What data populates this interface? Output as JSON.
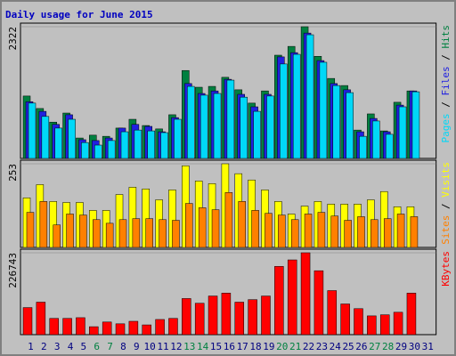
{
  "chart_data": [
    {
      "type": "bar",
      "title": "Daily usage for June 2015",
      "title_color": "#0000c0",
      "ylim": [
        0,
        2322
      ],
      "yticks": [
        2322
      ],
      "legend_separator": " / ",
      "series": [
        {
          "name": "Hits",
          "color": "#008040",
          "values": [
            1100,
            880,
            640,
            800,
            360,
            410,
            390,
            535,
            690,
            580,
            520,
            770,
            1550,
            1255,
            1270,
            1430,
            1210,
            975,
            1190,
            1820,
            1975,
            2322,
            1800,
            1410,
            1285,
            500,
            785,
            485,
            990,
            1190,
            null
          ]
        },
        {
          "name": "Files",
          "color": "#2020e0",
          "values": [
            1000,
            830,
            600,
            770,
            330,
            315,
            360,
            535,
            600,
            565,
            470,
            720,
            1320,
            1145,
            1190,
            1395,
            1130,
            910,
            1130,
            1790,
            1865,
            2210,
            1725,
            1320,
            1210,
            470,
            705,
            470,
            940,
            1190,
            null
          ]
        },
        {
          "name": "Pages",
          "color": "#00d8f8",
          "values": [
            975,
            740,
            535,
            690,
            280,
            235,
            315,
            470,
            500,
            485,
            455,
            690,
            1270,
            1115,
            1145,
            1380,
            1080,
            830,
            1100,
            1665,
            1835,
            2180,
            1695,
            1285,
            1160,
            390,
            660,
            425,
            910,
            1175,
            null
          ]
        }
      ]
    },
    {
      "type": "bar",
      "ylim": [
        0,
        253
      ],
      "yticks": [
        253
      ],
      "legend_separator": " / ",
      "series": [
        {
          "name": "Visits",
          "color": "#ffff00",
          "values": [
            150,
            190,
            139,
            136,
            136,
            112,
            112,
            160,
            182,
            177,
            144,
            174,
            247,
            201,
            193,
            253,
            223,
            204,
            174,
            139,
            101,
            125,
            139,
            131,
            131,
            131,
            144,
            169,
            123,
            123,
            null
          ]
        },
        {
          "name": "Sites",
          "color": "#ff8000",
          "values": [
            106,
            139,
            68,
            101,
            98,
            84,
            73,
            84,
            87,
            87,
            84,
            82,
            133,
            120,
            114,
            166,
            139,
            112,
            103,
            98,
            84,
            101,
            106,
            95,
            82,
            93,
            84,
            87,
            101,
            93,
            null
          ]
        }
      ]
    },
    {
      "type": "bar",
      "ylim": [
        0,
        226743
      ],
      "yticks": [
        226743
      ],
      "categories": [
        "1",
        "2",
        "3",
        "4",
        "5",
        "6",
        "7",
        "8",
        "9",
        "10",
        "11",
        "12",
        "13",
        "14",
        "15",
        "16",
        "17",
        "18",
        "19",
        "20",
        "21",
        "22",
        "23",
        "24",
        "25",
        "26",
        "27",
        "28",
        "29",
        "30",
        "31"
      ],
      "label_color": "#000080",
      "weekend_label_color": "#008040",
      "weekend_indices": [
        5,
        6,
        12,
        13,
        19,
        20,
        26,
        27
      ],
      "series": [
        {
          "name": "KBytes",
          "color": "#ff0000",
          "values": [
            75000,
            90000,
            45000,
            45000,
            47000,
            22000,
            35000,
            30000,
            37000,
            27000,
            42000,
            45000,
            100000,
            87000,
            107000,
            115000,
            90000,
            97000,
            107000,
            189000,
            207000,
            226743,
            177000,
            122000,
            85000,
            72000,
            52000,
            55000,
            62000,
            115000,
            null
          ]
        }
      ]
    }
  ]
}
